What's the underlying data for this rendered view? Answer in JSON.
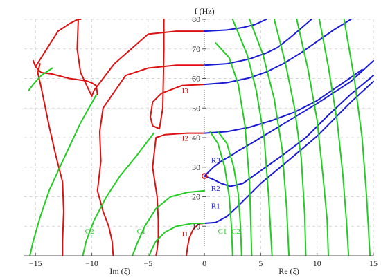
{
  "chart_data": {
    "type": "line",
    "title": "",
    "xlabel_left": "Im (ξ)",
    "xlabel_right": "Re (ξ)",
    "ylabel": "f (Hz)",
    "xlim": [
      -16,
      15
    ],
    "ylim": [
      0,
      80
    ],
    "x_ticks": [
      -15,
      -10,
      -5,
      0,
      5,
      10,
      15
    ],
    "x_tick_labels": [
      "−15",
      "−10",
      "−5",
      "0",
      "5",
      "10",
      "15"
    ],
    "y_ticks": [
      10,
      20,
      30,
      40,
      50,
      60,
      70,
      80
    ],
    "grid": true,
    "colors": {
      "red": "#dd1111",
      "blue": "#1a1ad6",
      "green": "#22cc22"
    },
    "series": [
      {
        "color": "red",
        "x": [
          0,
          -0.5,
          -1,
          -1.35,
          -1.5,
          -1.6
        ],
        "y": [
          11,
          10.8,
          9,
          6,
          3,
          0
        ]
      },
      {
        "color": "red",
        "x": [
          0,
          -1.5,
          -3.5,
          -4.3,
          -4.6,
          -4.2,
          -4.1,
          -4.1,
          -4.2,
          -4.3
        ],
        "y": [
          41.5,
          41.5,
          41,
          40,
          30,
          20,
          12,
          6,
          2,
          0
        ]
      },
      {
        "color": "red",
        "x": [
          0,
          -2,
          -3.8,
          -4.6,
          -4.8,
          -4.6,
          -4,
          -3.7,
          -3.6,
          -3.6
        ],
        "y": [
          58,
          57.6,
          55,
          52,
          47,
          44,
          43,
          50,
          70,
          80
        ]
      },
      {
        "color": "red",
        "x": [
          0,
          -2.5,
          -5,
          -7,
          -9,
          -9.3,
          -9.2,
          -9.5,
          -9,
          -8.5,
          -8.2,
          -8.1
        ],
        "y": [
          64.5,
          64.5,
          63.5,
          61,
          50,
          42,
          32,
          22,
          15,
          10,
          5,
          0
        ]
      },
      {
        "color": "red",
        "x": [
          0,
          -2.5,
          -5,
          -8,
          -9.8,
          -10,
          -10.5,
          -11,
          -11.3,
          -11.2
        ],
        "y": [
          76,
          76,
          75,
          65,
          56,
          54,
          58,
          62,
          70,
          80
        ]
      },
      {
        "color": "red",
        "x": [
          -15,
          -14.5,
          -13.5,
          -12,
          -10.5,
          -10,
          -9.6,
          -9.5
        ],
        "y": [
          64,
          62,
          61.5,
          60,
          59.2,
          58.5,
          57.5,
          54.5
        ]
      },
      {
        "color": "red",
        "x": [
          -14.6,
          -14.8,
          -14.5,
          -13.8,
          -13.2,
          -12.6,
          -12.5,
          -12.6,
          -12.6
        ],
        "y": [
          65,
          62,
          57,
          44,
          34,
          25,
          15,
          5,
          0
        ]
      },
      {
        "color": "red",
        "x": [
          -15.2,
          -15,
          -14,
          -13,
          -12,
          -11.5,
          -11.2,
          -11
        ],
        "y": [
          66,
          64,
          70,
          76,
          78.5,
          79.5,
          80,
          80
        ]
      },
      {
        "color": "blue",
        "x": [
          0,
          0.7,
          1.5,
          2.3,
          3.4,
          5,
          7,
          9,
          11,
          13,
          15
        ],
        "y": [
          27,
          26,
          24.5,
          23.5,
          24.5,
          28.8,
          34.2,
          40,
          47.6,
          54.7,
          61
        ]
      },
      {
        "color": "blue",
        "x": [
          0,
          0.8,
          1.6,
          2.2,
          3,
          4.5,
          7,
          10,
          13,
          15
        ],
        "y": [
          27,
          30,
          32.3,
          33.5,
          35.5,
          38.8,
          44.6,
          51.5,
          59,
          66
        ]
      },
      {
        "color": "blue",
        "x": [
          0,
          1,
          2,
          3,
          5,
          8,
          10,
          13,
          15
        ],
        "y": [
          11,
          11.3,
          13.3,
          16.9,
          24.5,
          34,
          40.5,
          52,
          59
        ]
      },
      {
        "color": "blue",
        "x": [
          0,
          2,
          4,
          6,
          8,
          10,
          12,
          14
        ],
        "y": [
          41.5,
          42,
          43.5,
          45.8,
          48.6,
          52.5,
          57.7,
          63
        ]
      },
      {
        "color": "blue",
        "x": [
          0,
          2,
          4,
          5.5,
          7,
          8.5,
          10,
          11.5,
          13
        ],
        "y": [
          58,
          58.6,
          60.2,
          62.2,
          65,
          68.5,
          72.5,
          76.5,
          80
        ]
      },
      {
        "color": "blue",
        "x": [
          0,
          2,
          4,
          5.5,
          6.5,
          7.5,
          8.5,
          9.5
        ],
        "y": [
          64.5,
          65,
          66.6,
          68.6,
          70.5,
          73.5,
          76.7,
          80
        ]
      },
      {
        "color": "blue",
        "x": [
          0,
          2,
          3.5,
          4.5,
          5.5
        ],
        "y": [
          76,
          76.4,
          77.3,
          78.3,
          80
        ]
      },
      {
        "color": "green",
        "x": [
          0.5,
          1.2,
          1.8,
          2.2,
          2.4,
          2.5
        ],
        "y": [
          42,
          38,
          30,
          20,
          10,
          0
        ]
      },
      {
        "color": "green",
        "x": [
          1.2,
          2,
          2.6,
          3,
          3.2,
          3.3
        ],
        "y": [
          42,
          38,
          30,
          21,
          10,
          0
        ]
      },
      {
        "color": "green",
        "x": [
          1,
          2.2,
          3,
          3.6,
          4,
          4.2
        ],
        "y": [
          72,
          67,
          58,
          44,
          25,
          0
        ]
      },
      {
        "color": "green",
        "x": [
          2.5,
          3.8,
          4.6,
          5.3,
          5.7,
          6
        ],
        "y": [
          80,
          68,
          56,
          40,
          20,
          0
        ]
      },
      {
        "color": "green",
        "x": [
          4,
          5.2,
          6.2,
          6.9,
          7.3,
          7.5
        ],
        "y": [
          80,
          68,
          53,
          36,
          16,
          0
        ]
      },
      {
        "color": "green",
        "x": [
          6.2,
          7.2,
          8,
          8.6,
          8.9,
          9
        ],
        "y": [
          80,
          65,
          50,
          33,
          14,
          0
        ]
      },
      {
        "color": "green",
        "x": [
          8.2,
          9.2,
          10,
          10.5,
          10.9,
          11
        ],
        "y": [
          80,
          63,
          46,
          28,
          12,
          0
        ]
      },
      {
        "color": "green",
        "x": [
          10.2,
          11,
          11.8,
          12.3,
          12.6,
          12.8
        ],
        "y": [
          80,
          64,
          45,
          27,
          12,
          0
        ]
      },
      {
        "color": "green",
        "x": [
          12.4,
          13.3,
          14,
          14.4,
          14.7
        ],
        "y": [
          80,
          60,
          40,
          20,
          0
        ]
      },
      {
        "color": "green",
        "x": [
          0,
          -1,
          -2.5,
          -3.5,
          -4.3,
          -4.7,
          -4.9
        ],
        "y": [
          11,
          11,
          10,
          8,
          5,
          2,
          0
        ]
      },
      {
        "color": "green",
        "x": [
          0,
          -1.5,
          -3,
          -4.3,
          -5.3,
          -6,
          -6.4
        ],
        "y": [
          22,
          21.5,
          20,
          16,
          10,
          4,
          0
        ]
      },
      {
        "color": "green",
        "x": [
          -4.5,
          -6,
          -7.5,
          -8.7,
          -9.8,
          -10.5,
          -10.8
        ],
        "y": [
          41.5,
          34,
          27,
          20,
          12,
          5,
          0
        ]
      },
      {
        "color": "green",
        "x": [
          -9.6,
          -11,
          -12.6,
          -13.8,
          -14.6,
          -15.2,
          -15.5
        ],
        "y": [
          54.5,
          45,
          32,
          22,
          13,
          5,
          0
        ]
      },
      {
        "color": "green",
        "x": [
          -13.5,
          -14.5,
          -15.2,
          -15.6
        ],
        "y": [
          63.5,
          61,
          58,
          56
        ]
      }
    ],
    "labels": [
      {
        "text": "R1",
        "x": 0.6,
        "y": 16,
        "color": "blue"
      },
      {
        "text": "R2",
        "x": 0.6,
        "y": 22,
        "color": "blue"
      },
      {
        "text": "R3",
        "x": 0.6,
        "y": 31.5,
        "color": "blue"
      },
      {
        "text": "I1",
        "x": -2,
        "y": 6.5,
        "color": "red"
      },
      {
        "text": "I2",
        "x": -2,
        "y": 39,
        "color": "red"
      },
      {
        "text": "I3",
        "x": -2,
        "y": 55,
        "color": "red"
      },
      {
        "text": "C1",
        "x": 1.2,
        "y": 7.5,
        "color": "green"
      },
      {
        "text": "C2",
        "x": 2.4,
        "y": 7.5,
        "color": "green"
      },
      {
        "text": "C1",
        "x": -6,
        "y": 7.5,
        "color": "green"
      },
      {
        "text": "C2",
        "x": -10.6,
        "y": 7.5,
        "color": "green"
      }
    ],
    "point": {
      "x": 0,
      "y": 27,
      "color": "red"
    }
  }
}
